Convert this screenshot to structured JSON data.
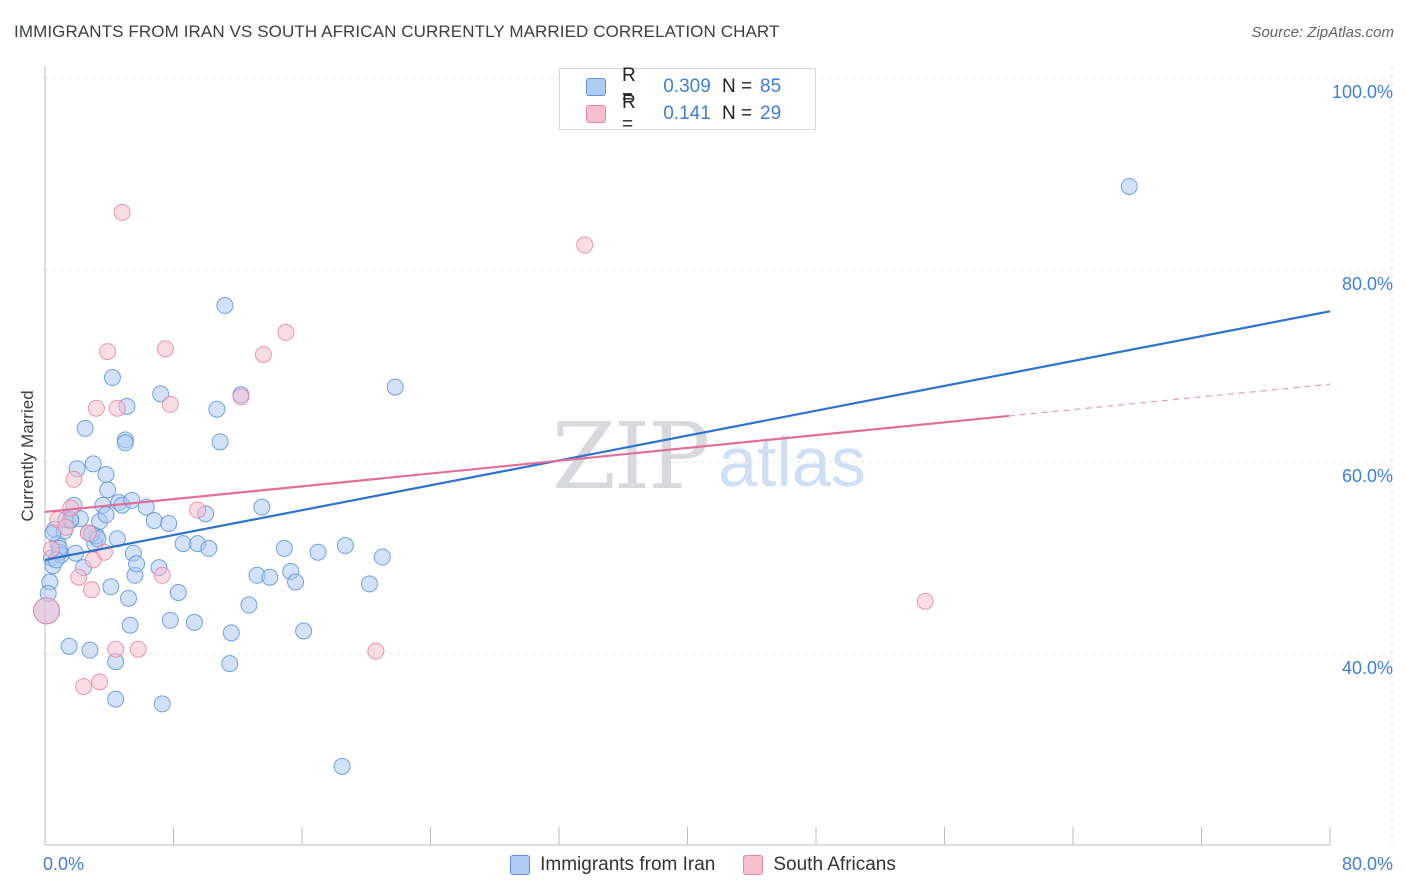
{
  "title": "IMMIGRANTS FROM IRAN VS SOUTH AFRICAN CURRENTLY MARRIED CORRELATION CHART",
  "source": "Source: ZipAtlas.com",
  "watermark": {
    "zip": "ZIP",
    "atlas": "atlas"
  },
  "colors": {
    "blue_fill": "#aecbf2",
    "blue_stroke": "#5b93dc",
    "blue_line": "#2d72cc",
    "pink_fill": "#f6bfd0",
    "pink_stroke": "#e6869f",
    "pink_line": "#e0709a",
    "tick_text": "#3f7fd4",
    "grid": "#e3e3e3"
  },
  "legend": {
    "rows": [
      {
        "r_label": "R =",
        "r_value": "0.309",
        "n_label": "N =",
        "n_value": "85"
      },
      {
        "r_label": "R =",
        "r_value": "0.141",
        "n_label": "N =",
        "n_value": "29"
      }
    ]
  },
  "bottom_legend": {
    "series_a": "Immigrants from Iran",
    "series_b": "South Africans"
  },
  "chart_data": {
    "type": "scatter",
    "title": "IMMIGRANTS FROM IRAN VS SOUTH AFRICAN CURRENTLY MARRIED CORRELATION CHART",
    "xlabel": "",
    "ylabel": "Currently Married",
    "xlim": [
      0,
      80
    ],
    "ylim": [
      20,
      105
    ],
    "x_tick_labels": [
      "0.0%",
      "80.0%"
    ],
    "y_ticks": [
      {
        "value": 100,
        "label": "100.0%"
      },
      {
        "value": 80,
        "label": "80.0%"
      },
      {
        "value": 60,
        "label": "60.0%"
      },
      {
        "value": 40,
        "label": "40.0%"
      }
    ],
    "grid": true,
    "series": [
      {
        "name": "Immigrants from Iran",
        "r": 0.309,
        "n": 85,
        "trend": {
          "x0": 0,
          "y0": 49.8,
          "x1": 80,
          "y1": 75.7
        },
        "points": [
          [
            0.1,
            44.5
          ],
          [
            0.3,
            47.5
          ],
          [
            0.4,
            50.0
          ],
          [
            0.5,
            49.2
          ],
          [
            0.6,
            53.0
          ],
          [
            0.8,
            51.5
          ],
          [
            0.9,
            50.6
          ],
          [
            1.0,
            50.3
          ],
          [
            1.2,
            52.8
          ],
          [
            1.3,
            54.0
          ],
          [
            1.5,
            40.8
          ],
          [
            1.6,
            53.9
          ],
          [
            1.8,
            55.5
          ],
          [
            1.9,
            50.5
          ],
          [
            2.0,
            59.3
          ],
          [
            2.2,
            54.1
          ],
          [
            2.4,
            49.0
          ],
          [
            2.5,
            63.5
          ],
          [
            2.7,
            52.6
          ],
          [
            2.8,
            40.4
          ],
          [
            3.0,
            59.8
          ],
          [
            3.1,
            51.5
          ],
          [
            3.2,
            52.3
          ],
          [
            3.4,
            53.8
          ],
          [
            3.6,
            55.5
          ],
          [
            3.8,
            58.7
          ],
          [
            3.9,
            57.1
          ],
          [
            4.1,
            47.0
          ],
          [
            4.2,
            68.8
          ],
          [
            4.4,
            39.2
          ],
          [
            4.4,
            35.3
          ],
          [
            4.6,
            55.8
          ],
          [
            4.8,
            55.5
          ],
          [
            5.0,
            62.3
          ],
          [
            5.1,
            65.8
          ],
          [
            5.0,
            62.0
          ],
          [
            5.2,
            45.8
          ],
          [
            5.3,
            43.0
          ],
          [
            5.4,
            56.0
          ],
          [
            5.5,
            50.5
          ],
          [
            5.6,
            48.2
          ],
          [
            5.7,
            49.4
          ],
          [
            6.3,
            55.3
          ],
          [
            6.8,
            53.9
          ],
          [
            7.1,
            49.0
          ],
          [
            7.2,
            67.1
          ],
          [
            7.3,
            34.8
          ],
          [
            7.7,
            53.6
          ],
          [
            7.8,
            43.5
          ],
          [
            8.3,
            46.4
          ],
          [
            8.6,
            51.5
          ],
          [
            9.3,
            43.3
          ],
          [
            9.5,
            51.5
          ],
          [
            10.2,
            51.0
          ],
          [
            10.0,
            54.6
          ],
          [
            10.7,
            65.5
          ],
          [
            10.9,
            62.1
          ],
          [
            11.2,
            76.3
          ],
          [
            11.5,
            39.0
          ],
          [
            11.6,
            42.2
          ],
          [
            12.2,
            67.0
          ],
          [
            12.7,
            45.1
          ],
          [
            13.2,
            48.2
          ],
          [
            13.5,
            55.3
          ],
          [
            14.0,
            48.0
          ],
          [
            14.9,
            51.0
          ],
          [
            15.3,
            48.6
          ],
          [
            15.6,
            47.5
          ],
          [
            16.1,
            42.4
          ],
          [
            17.0,
            50.6
          ],
          [
            18.5,
            28.3
          ],
          [
            18.7,
            51.3
          ],
          [
            20.2,
            47.3
          ],
          [
            21.0,
            50.1
          ],
          [
            21.8,
            67.8
          ],
          [
            67.5,
            88.7
          ],
          [
            0.2,
            46.3
          ],
          [
            0.5,
            52.6
          ],
          [
            0.9,
            51.0
          ],
          [
            1.6,
            54.0
          ],
          [
            2.9,
            52.5
          ],
          [
            3.3,
            52.0
          ],
          [
            3.8,
            54.5
          ],
          [
            4.5,
            52.0
          ],
          [
            0.7,
            49.8
          ]
        ]
      },
      {
        "name": "South Africans",
        "r": 0.141,
        "n": 29,
        "trend": {
          "x0": 0,
          "y0": 54.8,
          "x1": 60,
          "y1": 64.8,
          "dash_to_x": 80,
          "dash_to_y": 68.1
        },
        "points": [
          [
            0.1,
            44.5
          ],
          [
            0.4,
            50.9
          ],
          [
            0.8,
            54.0
          ],
          [
            1.3,
            53.2
          ],
          [
            1.6,
            55.2
          ],
          [
            1.8,
            58.2
          ],
          [
            2.1,
            48.0
          ],
          [
            2.4,
            36.6
          ],
          [
            2.7,
            52.6
          ],
          [
            2.9,
            46.7
          ],
          [
            3.2,
            65.6
          ],
          [
            3.4,
            37.1
          ],
          [
            3.7,
            50.6
          ],
          [
            3.9,
            71.5
          ],
          [
            4.5,
            65.6
          ],
          [
            4.4,
            40.5
          ],
          [
            4.8,
            86.0
          ],
          [
            5.8,
            40.5
          ],
          [
            7.3,
            48.2
          ],
          [
            7.5,
            71.8
          ],
          [
            7.8,
            66.0
          ],
          [
            9.5,
            55.0
          ],
          [
            12.2,
            66.8
          ],
          [
            13.6,
            71.2
          ],
          [
            15.0,
            73.5
          ],
          [
            20.6,
            40.3
          ],
          [
            33.6,
            82.6
          ],
          [
            54.8,
            45.5
          ],
          [
            3.0,
            49.8
          ]
        ]
      }
    ]
  }
}
